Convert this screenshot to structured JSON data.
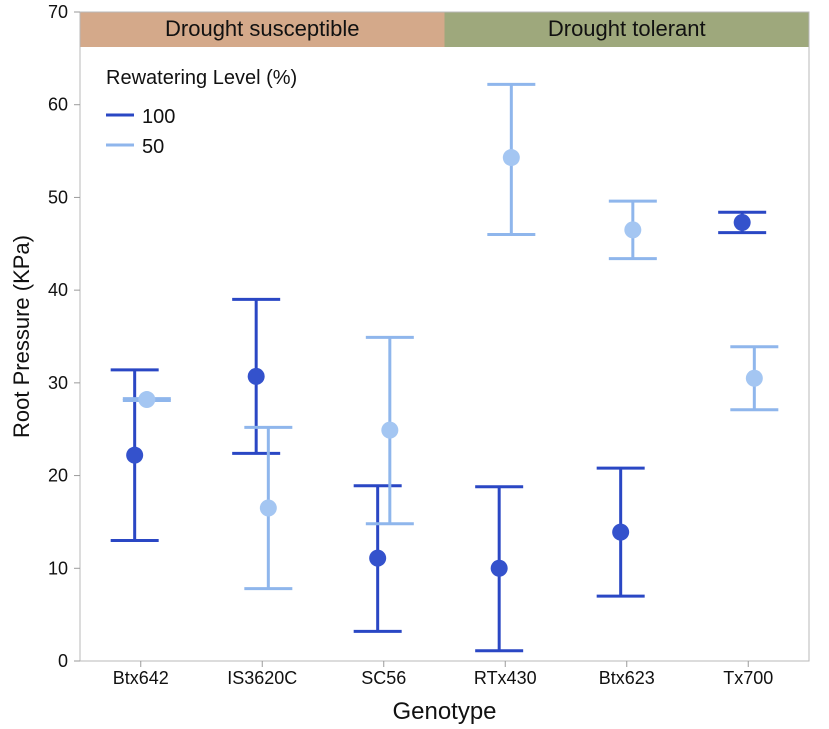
{
  "chart_data": {
    "type": "scatter",
    "subtype": "point-with-error-bars",
    "title": "",
    "xlabel": "Genotype",
    "ylabel": "Root Pressure (KPa)",
    "ylim": [
      0,
      70
    ],
    "yticks": [
      0,
      10,
      20,
      30,
      40,
      50,
      60,
      70
    ],
    "categories": [
      "Btx642",
      "IS3620C",
      "SC56",
      "RTx430",
      "Btx623",
      "Tx700"
    ],
    "groups": [
      {
        "label": "Drought susceptible",
        "categories": [
          "Btx642",
          "IS3620C",
          "SC56"
        ],
        "color": "#d4a98a"
      },
      {
        "label": "Drought tolerant",
        "categories": [
          "RTx430",
          "Btx623",
          "Tx700"
        ],
        "color": "#9ea87c"
      }
    ],
    "legend": {
      "title": "Rewatering Level (%)",
      "position": "top-left"
    },
    "series": [
      {
        "name": "100",
        "color": "#2a47c4",
        "marker_color": "#3452cc",
        "values": [
          22.2,
          30.7,
          11.1,
          10.0,
          13.9,
          47.3
        ],
        "lower": [
          13.0,
          22.4,
          3.2,
          1.1,
          7.0,
          46.2
        ],
        "upper": [
          31.4,
          39.0,
          18.9,
          18.8,
          20.8,
          48.4
        ]
      },
      {
        "name": "50",
        "color": "#8fb6ec",
        "marker_color": "#a4c6f2",
        "values": [
          28.2,
          16.5,
          24.9,
          54.3,
          46.5,
          30.5
        ],
        "lower": [
          28.1,
          7.8,
          14.8,
          46.0,
          43.4,
          27.1
        ],
        "upper": [
          28.3,
          25.2,
          34.9,
          62.2,
          49.6,
          33.9
        ]
      }
    ]
  }
}
